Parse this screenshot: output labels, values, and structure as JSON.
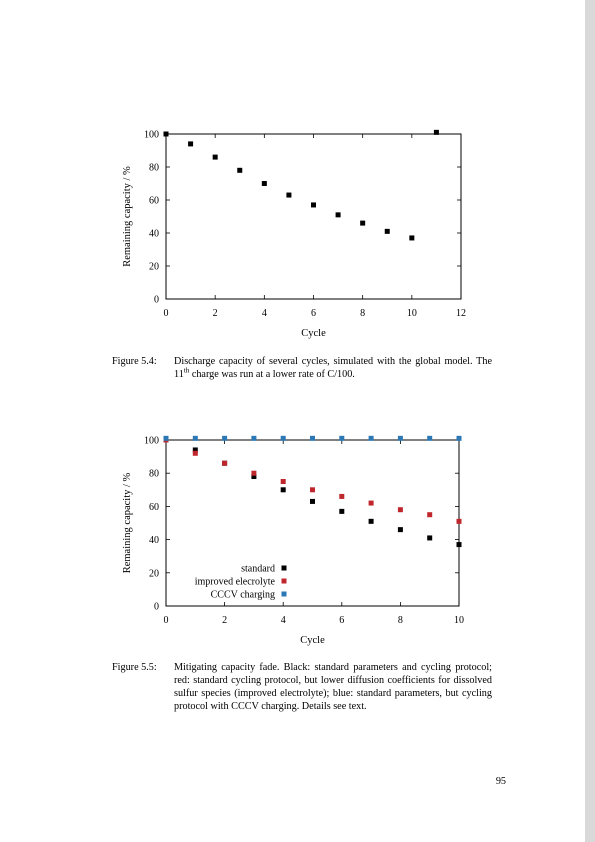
{
  "figure1": {
    "caption_label": "Figure 5.4:",
    "caption_text_a": "Discharge capacity of several cycles, simulated with the global model. The 11",
    "caption_sup": "th",
    "caption_text_b": " charge was run at a lower rate of C/100.",
    "chart_data": {
      "type": "scatter",
      "xlabel": "Cycle",
      "ylabel": "Remaining capacity / %",
      "xlim": [
        0,
        12
      ],
      "ylim": [
        0,
        100
      ],
      "xticks": [
        0,
        2,
        4,
        6,
        8,
        10,
        12
      ],
      "yticks": [
        0,
        20,
        40,
        60,
        80,
        100
      ],
      "grid": false,
      "series": [
        {
          "color": "#000000",
          "x": [
            0,
            1,
            2,
            3,
            4,
            5,
            6,
            7,
            8,
            9,
            10,
            11
          ],
          "y": [
            100,
            94,
            86,
            78,
            70,
            63,
            57,
            51,
            46,
            41,
            37,
            101
          ]
        }
      ]
    }
  },
  "figure2": {
    "caption_label": "Figure 5.5:",
    "caption_text": "Mitigating capacity fade. Black: standard parameters and cycling protocol; red: standard cycling protocol, but lower diffusion coefficients for dissolved sulfur species (improved electrolyte); blue: standard parameters, but cycling protocol with CCCV charging. Details see text.",
    "chart_data": {
      "type": "scatter",
      "xlabel": "Cycle",
      "ylabel": "Remaining capacity / %",
      "xlim": [
        0,
        10
      ],
      "ylim": [
        0,
        100
      ],
      "xticks": [
        0,
        2,
        4,
        6,
        8,
        10
      ],
      "yticks": [
        0,
        20,
        40,
        60,
        80,
        100
      ],
      "grid": false,
      "legend_position": "bottom-left",
      "series": [
        {
          "name": "standard",
          "color": "#000000",
          "x": [
            0,
            1,
            2,
            3,
            4,
            5,
            6,
            7,
            8,
            9,
            10
          ],
          "y": [
            100,
            94,
            86,
            78,
            70,
            63,
            57,
            51,
            46,
            41,
            37
          ]
        },
        {
          "name": "improved elecrolyte",
          "color": "#c0272d",
          "x": [
            0,
            1,
            2,
            3,
            4,
            5,
            6,
            7,
            8,
            9,
            10
          ],
          "y": [
            100,
            92,
            86,
            80,
            75,
            70,
            66,
            62,
            58,
            55,
            51
          ]
        },
        {
          "name": "CCCV charging",
          "color": "#2b78b5",
          "x": [
            0,
            1,
            2,
            3,
            4,
            5,
            6,
            7,
            8,
            9,
            10
          ],
          "y": [
            101,
            101,
            101,
            101,
            101,
            101,
            101,
            101,
            101,
            101,
            101
          ]
        }
      ]
    }
  },
  "page_number": "95"
}
